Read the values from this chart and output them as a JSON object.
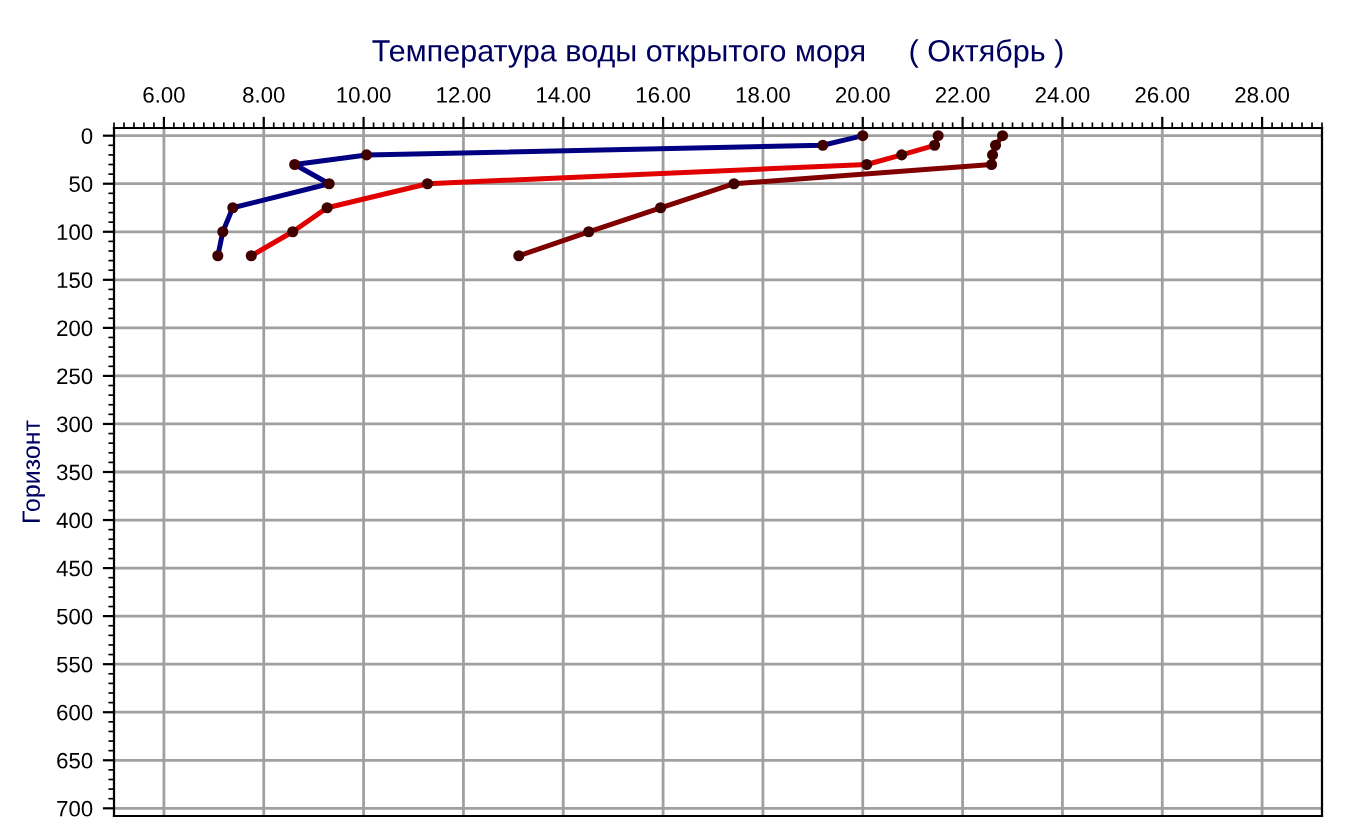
{
  "chart_data": {
    "type": "line",
    "title": "Температура воды открытого моря     ( Октябрь )",
    "ylabel": "Горизонт",
    "series": [
      {
        "color": "#000080",
        "x": [
          20.0,
          19.2,
          10.06,
          8.62,
          9.31,
          7.38,
          7.18,
          7.08
        ],
        "values": [
          0,
          10,
          20,
          30,
          50,
          75,
          100,
          125
        ]
      },
      {
        "color": "#e00000",
        "x": [
          21.51,
          21.44,
          20.78,
          20.08,
          11.28,
          9.27,
          8.58,
          7.75
        ],
        "values": [
          0,
          10,
          20,
          30,
          50,
          75,
          100,
          125
        ]
      },
      {
        "color": "#800000",
        "x": [
          22.8,
          22.66,
          22.6,
          22.58,
          17.42,
          15.95,
          14.51,
          13.11
        ],
        "values": [
          0,
          10,
          20,
          30,
          50,
          75,
          100,
          125
        ]
      }
    ],
    "xlim": [
      5,
      29.2
    ],
    "xticks": [
      {
        "value": 6,
        "label": "6.00"
      },
      {
        "value": 8,
        "label": "8.00"
      },
      {
        "value": 10,
        "label": "10.00"
      },
      {
        "value": 12,
        "label": "12.00"
      },
      {
        "value": 14,
        "label": "14.00"
      },
      {
        "value": 16,
        "label": "16.00"
      },
      {
        "value": 18,
        "label": "18.00"
      },
      {
        "value": 20,
        "label": "20.00"
      },
      {
        "value": 22,
        "label": "22.00"
      },
      {
        "value": 24,
        "label": "24.00"
      },
      {
        "value": 26,
        "label": "26.00"
      },
      {
        "value": 28,
        "label": "28.00"
      }
    ],
    "ylim": [
      708,
      -8
    ],
    "yticks": [
      0,
      50,
      100,
      150,
      200,
      250,
      300,
      350,
      400,
      450,
      500,
      550,
      600,
      650,
      700
    ],
    "grid": true,
    "marker": "circle",
    "line_style": "solid"
  }
}
